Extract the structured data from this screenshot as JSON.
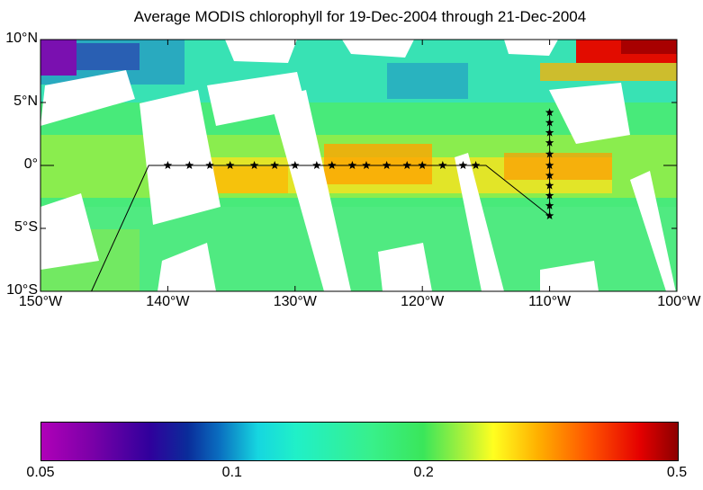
{
  "title": "Average MODIS chlorophyll for 19-Dec-2004 through 21-Dec-2004",
  "map": {
    "lon_range": [
      -150,
      -100
    ],
    "lat_range": [
      -10,
      10
    ],
    "x_ticks": [
      {
        "lon": -150,
        "label": "150°W"
      },
      {
        "lon": -140,
        "label": "140°W"
      },
      {
        "lon": -130,
        "label": "130°W"
      },
      {
        "lon": -120,
        "label": "120°W"
      },
      {
        "lon": -110,
        "label": "110°W"
      },
      {
        "lon": -100,
        "label": "100°W"
      }
    ],
    "y_ticks": [
      {
        "lat": 10,
        "label": "10°N"
      },
      {
        "lat": 5,
        "label": "5°N"
      },
      {
        "lat": 0,
        "label": "0°"
      },
      {
        "lat": -5,
        "label": "5°S"
      },
      {
        "lat": -10,
        "label": "10°S"
      }
    ],
    "track_line": [
      [
        -146,
        -10
      ],
      [
        -141.5,
        0
      ],
      [
        -115,
        0
      ],
      [
        -110,
        -4
      ]
    ],
    "equator_stations_lon": [
      -140,
      -138.3,
      -136.7,
      -135.1,
      -133.2,
      -131.6,
      -130,
      -128.3,
      -127.1,
      -125.5,
      -124.4,
      -122.8,
      -121.2,
      -120,
      -118.4,
      -116.8,
      -115.8
    ],
    "meridian_stations_lat": [
      -4,
      -3.2,
      -2.4,
      -1.6,
      -0.8,
      0,
      0.9,
      1.8,
      2.6,
      3.4,
      4.2
    ],
    "meridian_stations_lon": -110
  },
  "colorbar": {
    "ticks": [
      {
        "value": 0.05,
        "label": "0.05",
        "pos": 0
      },
      {
        "value": 0.1,
        "label": "0.1",
        "pos": 0.301
      },
      {
        "value": 0.2,
        "label": "0.2",
        "pos": 0.602
      },
      {
        "value": 0.5,
        "label": "0.5",
        "pos": 1
      }
    ],
    "colors": {
      "low": "#b000b8",
      "blue": "#0a2c9a",
      "cyan": "#16d6e0",
      "green": "#3ae65a",
      "yellow": "#ffff20",
      "orange": "#ffb000",
      "red": "#e50000",
      "high": "#8c0000"
    }
  }
}
